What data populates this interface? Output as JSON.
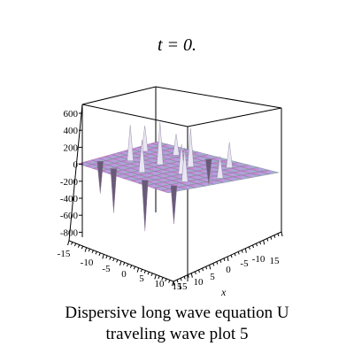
{
  "title": "t = 0.",
  "caption_line1": "Dispersive long wave equation U",
  "caption_line2": "traveling wave plot 5",
  "chart_data": {
    "type": "surface3d",
    "title": "t = 0.",
    "xlabel": "x",
    "zticks": [
      "600",
      "400",
      "200",
      "0",
      "-200",
      "-400",
      "-600",
      "-800"
    ],
    "zlim": [
      -800,
      600
    ],
    "xticks": [
      "-15",
      "-10",
      "-5",
      "0",
      "5",
      "10",
      "15"
    ],
    "yticks": [
      "15",
      "10",
      "5",
      "0",
      "-5",
      "-10",
      "15"
    ],
    "xlim": [
      -15,
      15
    ],
    "ylim": [
      -15,
      15
    ],
    "spikes": [
      {
        "x": -12,
        "y": 6,
        "z": 300
      },
      {
        "x": -9,
        "y": -3,
        "z": 420
      },
      {
        "x": -6,
        "y": 9,
        "z": 250
      },
      {
        "x": -3,
        "y": 0,
        "z": 500
      },
      {
        "x": -1,
        "y": -8,
        "z": 380
      },
      {
        "x": 2,
        "y": 4,
        "z": 450
      },
      {
        "x": 5,
        "y": -2,
        "z": 350
      },
      {
        "x": 7,
        "y": 10,
        "z": 300
      },
      {
        "x": 10,
        "y": -6,
        "z": 400
      },
      {
        "x": 12,
        "y": 2,
        "z": 260
      },
      {
        "x": -7,
        "y": -11,
        "z": -520
      },
      {
        "x": 4,
        "y": -12,
        "z": -600
      },
      {
        "x": 11,
        "y": -10,
        "z": -450
      },
      {
        "x": -13,
        "y": -9,
        "z": -380
      },
      {
        "x": 0,
        "y": 12,
        "z": -300
      }
    ],
    "colors": {
      "left": "#e070c8",
      "middle": "#b49ee0",
      "right": "#88c8b0",
      "spike": "#e8e6f2"
    }
  }
}
